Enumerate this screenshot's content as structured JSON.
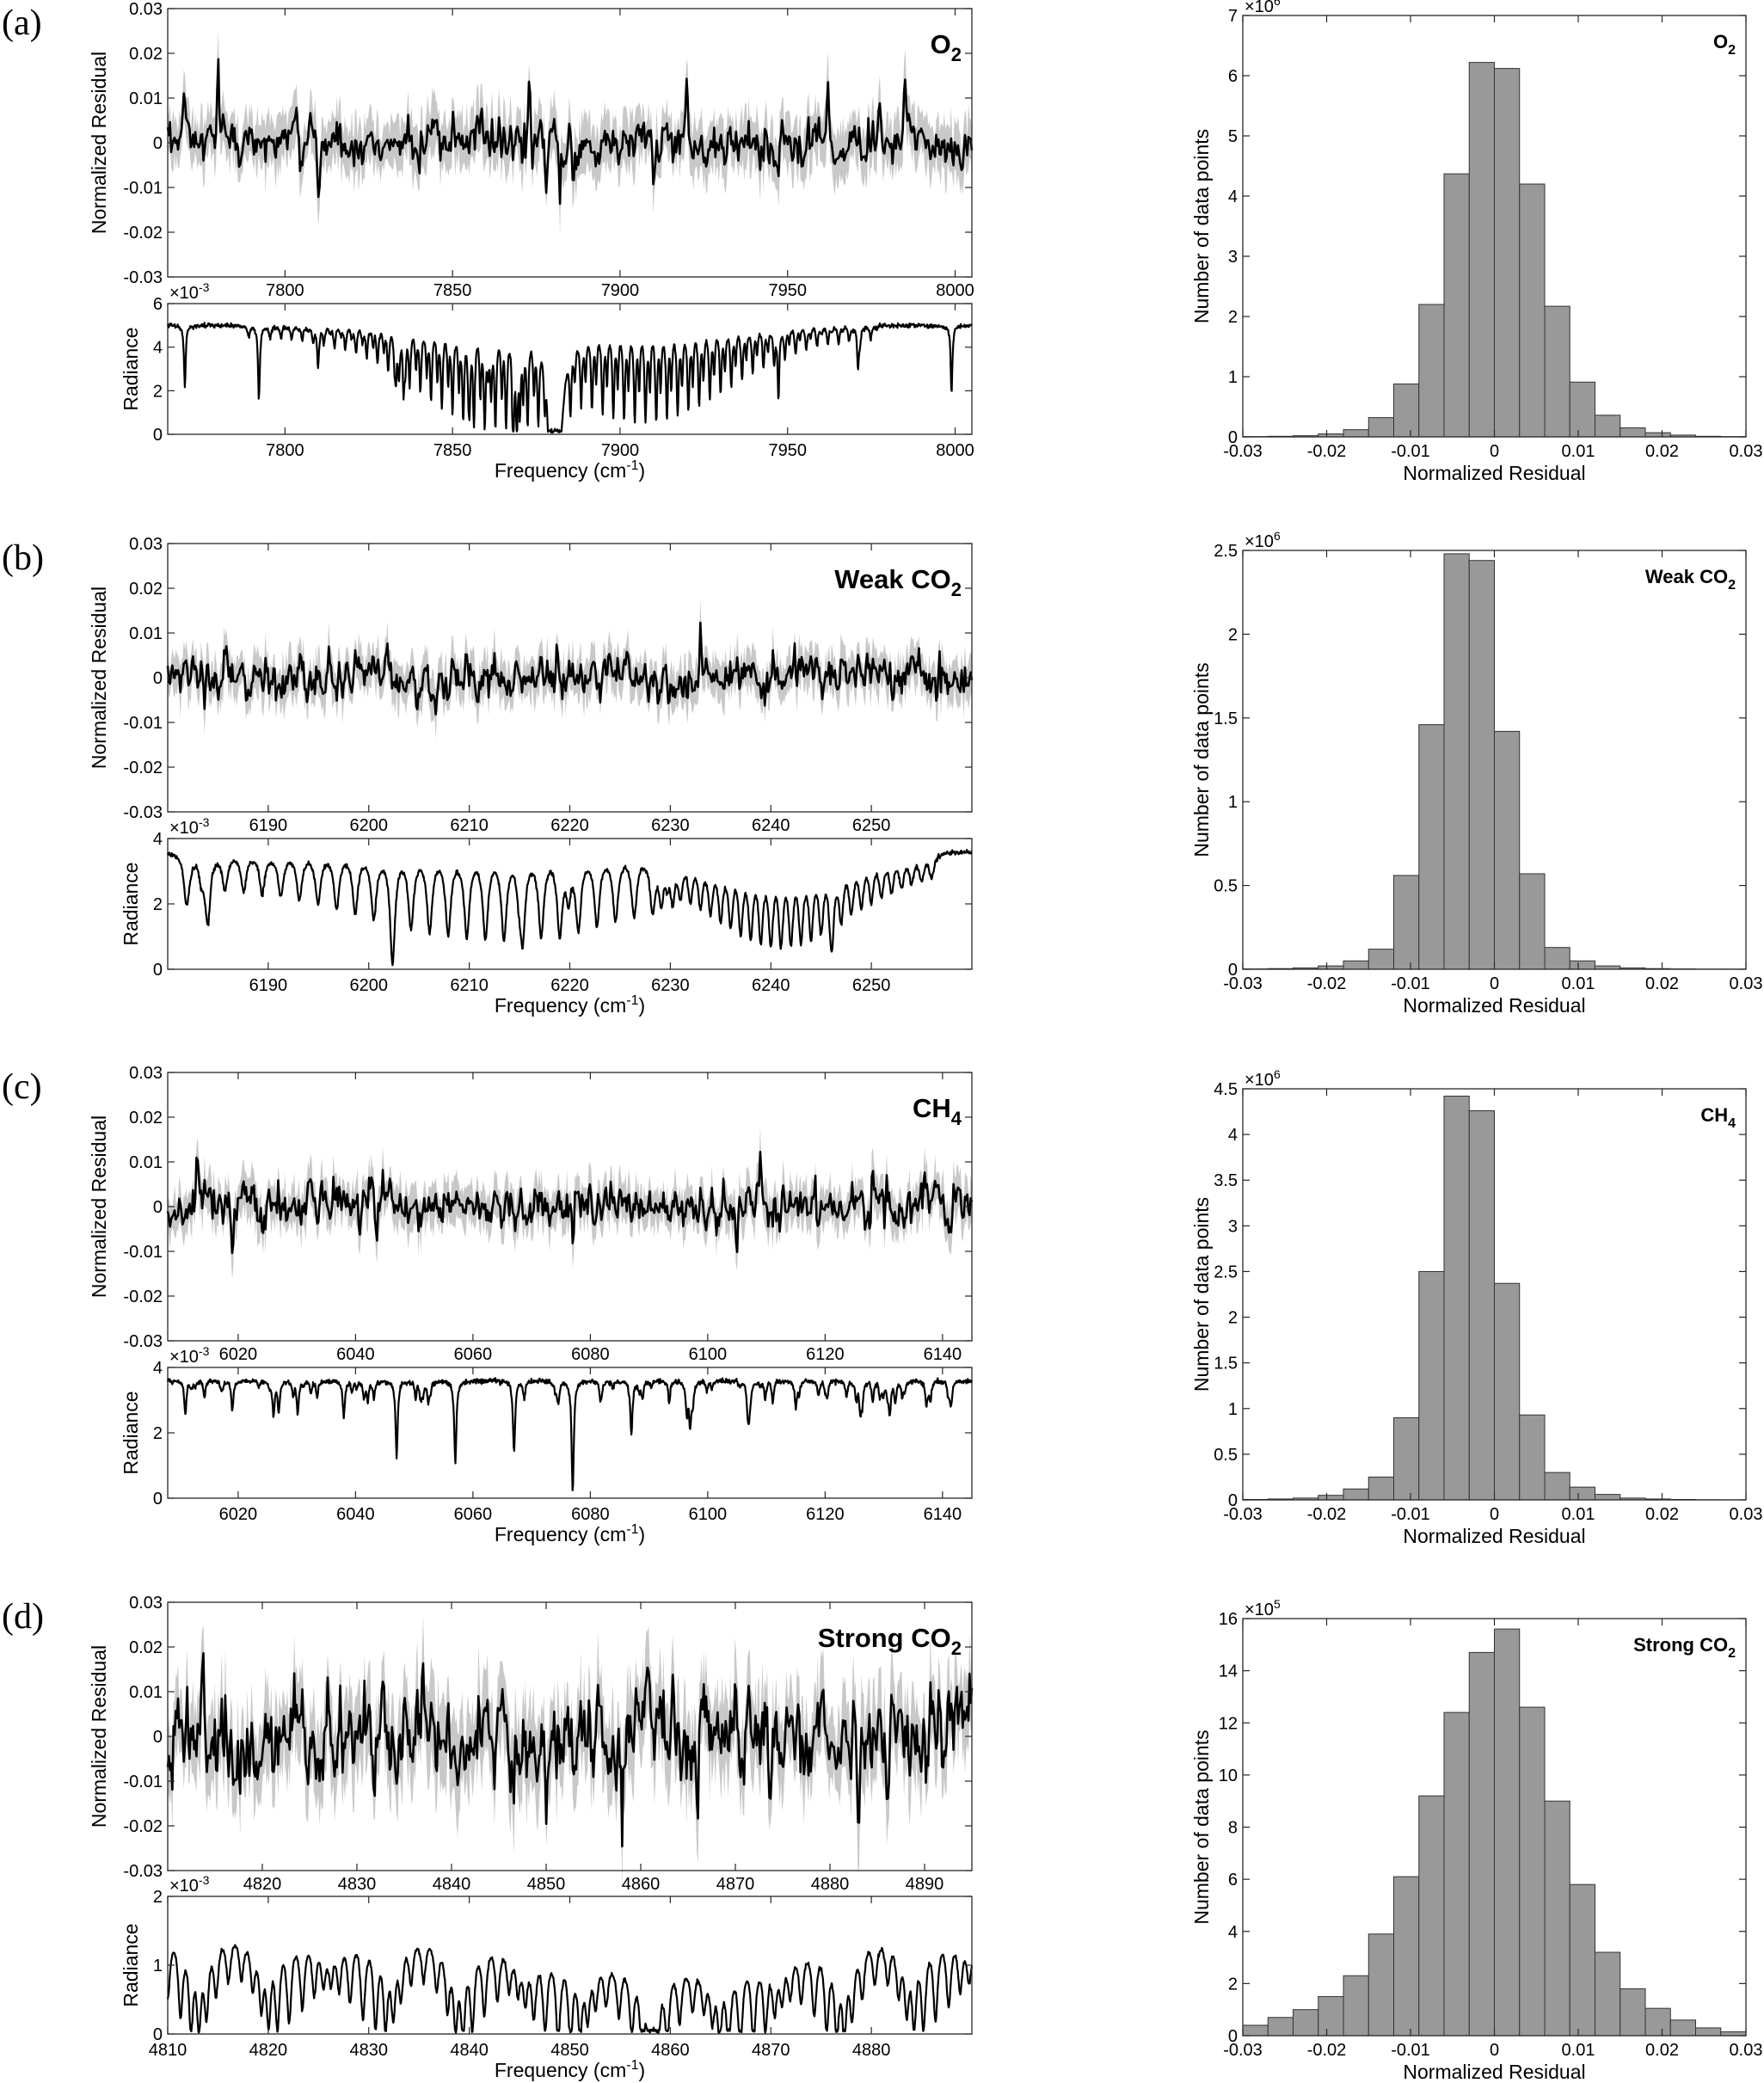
{
  "colors": {
    "residual_band": "#c8c8c8",
    "residual_line": "#000000",
    "radiance_line": "#000000",
    "histogram_bar": "#999999",
    "histogram_edge": "#333333",
    "axes": "#262626"
  },
  "chart_data": [
    {
      "panel_label": "(a)",
      "gas": {
        "main": "O",
        "sub": "2"
      },
      "residual_plot": {
        "type": "line",
        "ylabel": "Normalized Residual",
        "xlim": [
          7765,
          8005
        ],
        "ylim": [
          -0.03,
          0.03
        ],
        "xticks": [
          7800,
          7850,
          7900,
          7950,
          8000
        ],
        "yticks": [
          -0.03,
          -0.02,
          -0.01,
          0,
          0.01,
          0.02,
          0.03
        ],
        "ytick_labels": [
          "-0.03",
          "-0.02",
          "-0.01",
          "0",
          "0.01",
          "0.02",
          "0.03"
        ],
        "noise_std": 0.0024,
        "band_halfwidth": 0.005,
        "spikes": [
          [
            7780,
            0.016
          ],
          [
            7810,
            -0.013
          ],
          [
            7840,
            -0.009
          ],
          [
            7873,
            0.012
          ],
          [
            7878,
            -0.013
          ],
          [
            7882,
            -0.016
          ],
          [
            7886,
            -0.011
          ],
          [
            7920,
            0.011
          ],
          [
            7962,
            0.012
          ],
          [
            7985,
            0.011
          ],
          [
            7910,
            -0.008
          ]
        ]
      },
      "radiance_plot": {
        "type": "line",
        "ylabel": "Radiance",
        "xlabel": "Frequency (cm",
        "xlabel_sup": "-1",
        "multiplier": {
          "base": "×10",
          "exp": "-3"
        },
        "xlim": [
          7765,
          8005
        ],
        "ylim": [
          0,
          6
        ],
        "xticks": [
          7800,
          7850,
          7900,
          7950,
          8000
        ],
        "yticks": [
          0,
          2,
          4,
          6
        ],
        "continuum": 5.0,
        "lines_pattern": "banded_p_r",
        "band_center": 7882,
        "band_min": 0.2
      },
      "histogram": {
        "type": "bar",
        "xlabel": "Normalized Residual",
        "ylabel": "Number of data points",
        "multiplier": {
          "base": "×10",
          "exp": "6"
        },
        "xlim": [
          -0.03,
          0.03
        ],
        "ylim": [
          0,
          7
        ],
        "xticks": [
          -0.03,
          -0.02,
          -0.01,
          0,
          0.01,
          0.02,
          0.03
        ],
        "xtick_labels": [
          "-0.03",
          "-0.02",
          "-0.01",
          "0",
          "0.01",
          "0.02",
          "0.03"
        ],
        "yticks": [
          0,
          1,
          2,
          3,
          4,
          5,
          6,
          7
        ],
        "ytick_labels": [
          "0",
          "1",
          "2",
          "3",
          "4",
          "5",
          "6",
          "7"
        ],
        "bin_edges_start": -0.03,
        "bin_width": 0.003,
        "values": [
          0.005,
          0.01,
          0.02,
          0.05,
          0.12,
          0.32,
          0.88,
          2.2,
          4.37,
          6.22,
          6.12,
          4.2,
          2.17,
          0.91,
          0.36,
          0.15,
          0.07,
          0.03,
          0.01,
          0.005
        ]
      }
    },
    {
      "panel_label": "(b)",
      "gas": {
        "main": "Weak CO",
        "sub": "2"
      },
      "residual_plot": {
        "type": "line",
        "ylabel": "Normalized Residual",
        "xlim": [
          6180,
          6260
        ],
        "ylim": [
          -0.03,
          0.03
        ],
        "xticks": [
          6190,
          6200,
          6210,
          6220,
          6230,
          6240,
          6250
        ],
        "yticks": [
          -0.03,
          -0.02,
          -0.01,
          0,
          0.01,
          0.02,
          0.03
        ],
        "ytick_labels": [
          "-0.03",
          "-0.02",
          "-0.01",
          "0",
          "0.01",
          "0.02",
          "0.03"
        ],
        "noise_std": 0.0022,
        "band_halfwidth": 0.004,
        "spikes": [
          [
            6185,
            -0.008
          ],
          [
            6233,
            0.01
          ],
          [
            6242,
            -0.006
          ],
          [
            6196,
            0.008
          ]
        ]
      },
      "radiance_plot": {
        "type": "line",
        "ylabel": "Radiance",
        "xlabel": "Frequency (cm",
        "xlabel_sup": "-1",
        "multiplier": {
          "base": "×10",
          "exp": "-3"
        },
        "xlim": [
          6180,
          6260
        ],
        "ylim": [
          0,
          4
        ],
        "xticks": [
          6190,
          6200,
          6210,
          6220,
          6230,
          6240,
          6250
        ],
        "yticks": [
          0,
          2,
          4
        ],
        "continuum": 3.6,
        "lines_pattern": "two_branch",
        "band_min": 1.2
      },
      "histogram": {
        "type": "bar",
        "xlabel": "Normalized Residual",
        "ylabel": "Number of data points",
        "multiplier": {
          "base": "×10",
          "exp": "6"
        },
        "xlim": [
          -0.03,
          0.03
        ],
        "ylim": [
          0,
          2.5
        ],
        "xticks": [
          -0.03,
          -0.02,
          -0.01,
          0,
          0.01,
          0.02,
          0.03
        ],
        "xtick_labels": [
          "-0.03",
          "-0.02",
          "-0.01",
          "0",
          "0.01",
          "0.02",
          "0.03"
        ],
        "yticks": [
          0,
          0.5,
          1,
          1.5,
          2,
          2.5
        ],
        "ytick_labels": [
          "0",
          "0.5",
          "1",
          "1.5",
          "2",
          "2.5"
        ],
        "bin_edges_start": -0.03,
        "bin_width": 0.003,
        "values": [
          0.002,
          0.004,
          0.008,
          0.02,
          0.05,
          0.12,
          0.56,
          1.46,
          2.48,
          2.44,
          1.42,
          0.57,
          0.13,
          0.05,
          0.02,
          0.008,
          0.004,
          0.002,
          0.001,
          0.001
        ]
      }
    },
    {
      "panel_label": "(c)",
      "gas": {
        "main": "CH",
        "sub": "4"
      },
      "residual_plot": {
        "type": "line",
        "ylabel": "Normalized Residual",
        "xlim": [
          6008,
          6145
        ],
        "ylim": [
          -0.03,
          0.03
        ],
        "xticks": [
          6020,
          6040,
          6060,
          6080,
          6100,
          6120,
          6140
        ],
        "yticks": [
          -0.03,
          -0.02,
          -0.01,
          0,
          0.01,
          0.02,
          0.03
        ],
        "ytick_labels": [
          "-0.03",
          "-0.02",
          "-0.01",
          "0",
          "0.01",
          "0.02",
          "0.03"
        ],
        "noise_std": 0.0022,
        "band_halfwidth": 0.004,
        "spikes": [
          [
            6109,
            0.015
          ],
          [
            6019,
            -0.011
          ],
          [
            6077,
            -0.009
          ],
          [
            6105,
            -0.009
          ],
          [
            6013,
            0.012
          ],
          [
            6128,
            0.011
          ]
        ]
      },
      "radiance_plot": {
        "type": "line",
        "ylabel": "Radiance",
        "xlabel": "Frequency (cm",
        "xlabel_sup": "-1",
        "multiplier": {
          "base": "×10",
          "exp": "-3"
        },
        "xlim": [
          6008,
          6145
        ],
        "ylim": [
          0,
          4
        ],
        "xticks": [
          6020,
          6040,
          6060,
          6080,
          6100,
          6120,
          6140
        ],
        "yticks": [
          0,
          2,
          4
        ],
        "continuum": 3.6,
        "lines_pattern": "sparse",
        "deep_lines": [
          [
            6047,
            1.3
          ],
          [
            6057,
            1.1
          ],
          [
            6067,
            1.4
          ],
          [
            6077,
            0.7
          ],
          [
            6087,
            2.0
          ],
          [
            6097,
            2.3
          ],
          [
            6038,
            2.5
          ],
          [
            6011,
            2.6
          ],
          [
            6019,
            2.7
          ],
          [
            6026,
            2.9
          ],
          [
            6107,
            2.7
          ],
          [
            6115,
            2.8
          ],
          [
            6126,
            2.7
          ],
          [
            6131,
            2.6
          ]
        ]
      },
      "histogram": {
        "type": "bar",
        "xlabel": "Normalized Residual",
        "ylabel": "Number of data points",
        "multiplier": {
          "base": "×10",
          "exp": "6"
        },
        "xlim": [
          -0.03,
          0.03
        ],
        "ylim": [
          0,
          4.5
        ],
        "xticks": [
          -0.03,
          -0.02,
          -0.01,
          0,
          0.01,
          0.02,
          0.03
        ],
        "xtick_labels": [
          "-0.03",
          "-0.02",
          "-0.01",
          "0",
          "0.01",
          "0.02",
          "0.03"
        ],
        "yticks": [
          0,
          0.5,
          1,
          1.5,
          2,
          2.5,
          3,
          3.5,
          4,
          4.5
        ],
        "ytick_labels": [
          "0",
          "0.5",
          "1",
          "1.5",
          "2",
          "2.5",
          "3",
          "3.5",
          "4",
          "4.5"
        ],
        "bin_edges_start": -0.03,
        "bin_width": 0.003,
        "values": [
          0.005,
          0.01,
          0.02,
          0.05,
          0.12,
          0.25,
          0.9,
          2.5,
          4.42,
          4.26,
          2.37,
          0.93,
          0.3,
          0.14,
          0.06,
          0.02,
          0.01,
          0.005,
          0.002,
          0.001
        ]
      }
    },
    {
      "panel_label": "(d)",
      "gas": {
        "main": "Strong CO",
        "sub": "2"
      },
      "residual_plot": {
        "type": "line",
        "ylabel": "Normalized Residual",
        "xlim": [
          4810,
          4895
        ],
        "ylim": [
          -0.03,
          0.03
        ],
        "xticks": [
          4820,
          4830,
          4840,
          4850,
          4860,
          4870,
          4880,
          4890
        ],
        "yticks": [
          -0.03,
          -0.02,
          -0.01,
          0,
          0.01,
          0.02,
          0.03
        ],
        "ytick_labels": [
          "-0.03",
          "-0.02",
          "-0.01",
          "0",
          "0.01",
          "0.02",
          "0.03"
        ],
        "noise_std": 0.0045,
        "band_halfwidth": 0.008,
        "spikes": [
          [
            4855,
            -0.021
          ],
          [
            4858,
            -0.023
          ],
          [
            4850,
            -0.015
          ],
          [
            4866,
            -0.016
          ],
          [
            4870,
            0.013
          ],
          [
            4827,
            0.014
          ],
          [
            4837,
            0.016
          ],
          [
            4812,
            0.013
          ],
          [
            4883,
            -0.015
          ]
        ]
      },
      "radiance_plot": {
        "type": "line",
        "ylabel": "Radiance",
        "xlabel": "Frequency (cm",
        "xlabel_sup": "-1",
        "multiplier": {
          "base": "×10",
          "exp": "-3"
        },
        "xlim": [
          4810,
          4890
        ],
        "ylim": [
          0,
          2
        ],
        "xticks": [
          4810,
          4820,
          4830,
          4840,
          4850,
          4860,
          4870,
          4880
        ],
        "yticks": [
          0,
          1,
          2
        ],
        "continuum": 1.6,
        "lines_pattern": "dense_periodic",
        "band_min": 0.1
      },
      "histogram": {
        "type": "bar",
        "xlabel": "Normalized Residual",
        "ylabel": "Number of data points",
        "multiplier": {
          "base": "×10",
          "exp": "5"
        },
        "xlim": [
          -0.03,
          0.03
        ],
        "ylim": [
          0,
          16
        ],
        "xticks": [
          -0.03,
          -0.02,
          -0.01,
          0,
          0.01,
          0.02,
          0.03
        ],
        "xtick_labels": [
          "-0.03",
          "-0.02",
          "-0.01",
          "0",
          "0.01",
          "0.02",
          "0.03"
        ],
        "yticks": [
          0,
          2,
          4,
          6,
          8,
          10,
          12,
          14,
          16
        ],
        "ytick_labels": [
          "0",
          "2",
          "4",
          "6",
          "8",
          "10",
          "12",
          "14",
          "16"
        ],
        "bin_edges_start": -0.03,
        "bin_width": 0.003,
        "values": [
          0.4,
          0.7,
          1.0,
          1.5,
          2.3,
          3.9,
          6.1,
          9.2,
          12.4,
          14.7,
          15.6,
          12.6,
          9.0,
          5.8,
          3.2,
          1.8,
          1.05,
          0.6,
          0.3,
          0.15
        ]
      }
    }
  ]
}
